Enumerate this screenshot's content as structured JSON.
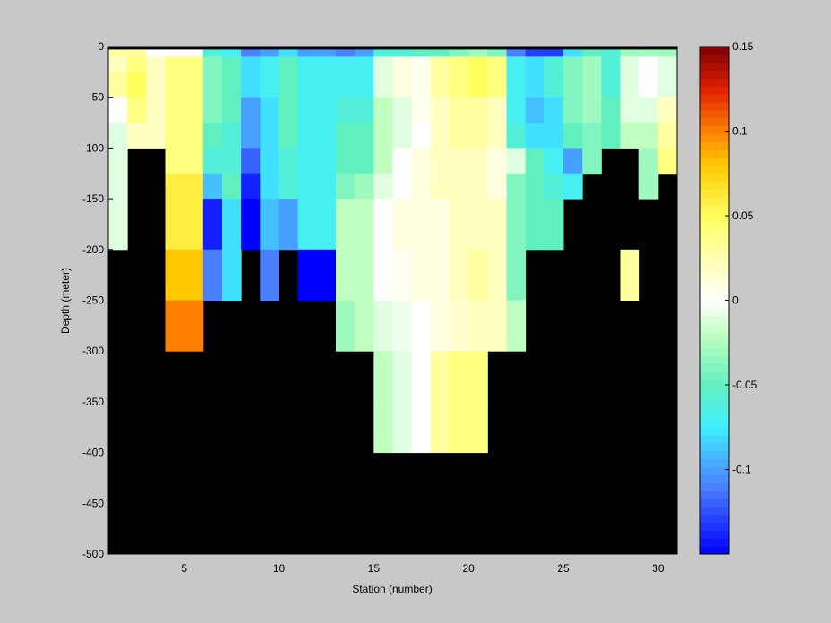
{
  "chart_data": {
    "type": "heatmap",
    "title": "",
    "xlabel": "Station (number)",
    "ylabel": "Depth (meter)",
    "xlim": [
      1,
      31
    ],
    "ylim": [
      -500,
      0
    ],
    "xticks": [
      5,
      10,
      15,
      20,
      25,
      30
    ],
    "yticks": [
      0,
      -50,
      -100,
      -150,
      -200,
      -250,
      -300,
      -350,
      -400,
      -450,
      -500
    ],
    "grid": false,
    "background_color": "#000000",
    "colorbar": {
      "position": "right",
      "range": [
        -0.15,
        0.15
      ],
      "ticks": [
        0.15,
        0.1,
        0.05,
        0,
        -0.05,
        -0.1
      ],
      "tick_labels": [
        "0.15",
        "0.1",
        "0.05",
        "0",
        "-0.05",
        "-0.1"
      ],
      "colormap_stops": [
        {
          "v": -0.15,
          "color": "#0000ff"
        },
        {
          "v": -0.11,
          "color": "#4a7fff"
        },
        {
          "v": -0.075,
          "color": "#40f0ff"
        },
        {
          "v": -0.05,
          "color": "#60f0c0"
        },
        {
          "v": -0.02,
          "color": "#c0ffc0"
        },
        {
          "v": 0,
          "color": "#ffffff"
        },
        {
          "v": 0.02,
          "color": "#ffffc0"
        },
        {
          "v": 0.05,
          "color": "#ffff60"
        },
        {
          "v": 0.08,
          "color": "#ffc800"
        },
        {
          "v": 0.1,
          "color": "#ff8000"
        },
        {
          "v": 0.125,
          "color": "#e02000"
        },
        {
          "v": 0.15,
          "color": "#800000"
        }
      ]
    },
    "surface_depth_range": [
      0,
      -10
    ],
    "stations": [
      1,
      2,
      3,
      4,
      5,
      6,
      7,
      8,
      9,
      10,
      11,
      12,
      13,
      14,
      15,
      16,
      17,
      18,
      19,
      20,
      21,
      22,
      23,
      24,
      25,
      26,
      27,
      28,
      29,
      30
    ],
    "station_bottom_depth": [
      -200,
      -100,
      -100,
      -300,
      -300,
      -250,
      -250,
      -200,
      -250,
      -200,
      -250,
      -250,
      -300,
      -300,
      -400,
      -400,
      -400,
      -400,
      -400,
      -400,
      -300,
      -300,
      -200,
      -200,
      -200,
      -150,
      -100,
      -250,
      -150,
      -125
    ],
    "layer_depths": [
      [
        -10,
        -25
      ],
      [
        -25,
        -50
      ],
      [
        -50,
        -75
      ],
      [
        -75,
        -100
      ],
      [
        -100,
        -125
      ],
      [
        -125,
        -150
      ],
      [
        -150,
        -175
      ],
      [
        -175,
        -200
      ],
      [
        -200,
        -250
      ],
      [
        -250,
        -300
      ],
      [
        -300,
        -350
      ],
      [
        -350,
        -400
      ]
    ],
    "values": [
      [
        0.02,
        0.04,
        0.02,
        0.04,
        0.04,
        -0.04,
        -0.05,
        -0.08,
        -0.07,
        -0.05,
        -0.07,
        -0.07,
        -0.07,
        -0.07,
        -0.01,
        0.01,
        0.005,
        0.03,
        0.04,
        0.05,
        0.04,
        -0.07,
        -0.08,
        -0.06,
        -0.04,
        -0.03,
        -0.06,
        -0.01,
        0.0,
        -0.01
      ],
      [
        0.03,
        0.05,
        0.02,
        0.04,
        0.04,
        -0.04,
        -0.05,
        -0.08,
        -0.07,
        -0.05,
        -0.07,
        -0.07,
        -0.07,
        -0.07,
        -0.01,
        0.01,
        0.005,
        0.03,
        0.04,
        0.05,
        0.04,
        -0.07,
        -0.08,
        -0.06,
        -0.04,
        -0.03,
        -0.06,
        -0.01,
        0.0,
        -0.01
      ],
      [
        0.0,
        0.04,
        0.02,
        0.04,
        0.04,
        -0.04,
        -0.05,
        -0.1,
        -0.08,
        -0.05,
        -0.07,
        -0.07,
        -0.06,
        -0.06,
        -0.02,
        -0.01,
        0.005,
        0.02,
        0.03,
        0.03,
        0.02,
        -0.07,
        -0.09,
        -0.08,
        -0.04,
        -0.03,
        -0.05,
        -0.01,
        -0.01,
        0.02
      ],
      [
        -0.01,
        0.02,
        0.02,
        0.04,
        0.04,
        -0.05,
        -0.06,
        -0.1,
        -0.08,
        -0.05,
        -0.07,
        -0.07,
        -0.05,
        -0.05,
        -0.02,
        -0.01,
        0.0,
        0.02,
        0.03,
        0.03,
        0.02,
        -0.06,
        -0.08,
        -0.08,
        -0.05,
        -0.04,
        -0.05,
        -0.02,
        -0.02,
        0.03
      ],
      [
        -0.01,
        null,
        null,
        0.04,
        0.04,
        -0.06,
        -0.06,
        -0.12,
        -0.08,
        -0.06,
        -0.07,
        -0.07,
        -0.05,
        -0.05,
        -0.02,
        0.0,
        0.01,
        0.02,
        0.02,
        0.02,
        0.01,
        -0.01,
        -0.05,
        -0.07,
        -0.1,
        -0.04,
        -0.01,
        null,
        -0.03,
        0.04
      ],
      [
        -0.01,
        null,
        null,
        0.06,
        0.06,
        -0.09,
        -0.05,
        -0.14,
        -0.08,
        -0.06,
        -0.07,
        -0.07,
        -0.04,
        -0.03,
        -0.01,
        0.0,
        0.01,
        0.02,
        0.02,
        0.02,
        0.01,
        -0.04,
        -0.05,
        -0.06,
        -0.07,
        null,
        null,
        null,
        -0.03,
        null
      ],
      [
        -0.01,
        null,
        null,
        0.06,
        0.06,
        -0.14,
        -0.08,
        -0.15,
        -0.09,
        -0.1,
        -0.07,
        -0.07,
        -0.02,
        -0.02,
        0.0,
        0.01,
        0.01,
        0.01,
        0.02,
        0.02,
        0.02,
        -0.04,
        -0.05,
        -0.05,
        null,
        -0.01,
        null,
        null,
        -0.01,
        null
      ],
      [
        -0.01,
        null,
        null,
        0.06,
        0.06,
        -0.14,
        -0.08,
        -0.15,
        -0.09,
        -0.1,
        -0.07,
        -0.07,
        -0.02,
        -0.02,
        0.0,
        0.01,
        0.01,
        0.01,
        0.02,
        0.02,
        0.02,
        -0.04,
        -0.05,
        -0.05,
        null,
        -0.01,
        null,
        null,
        -0.01,
        null
      ],
      [
        null,
        null,
        null,
        0.08,
        0.08,
        -0.11,
        -0.08,
        null,
        -0.11,
        null,
        -0.15,
        -0.15,
        -0.02,
        -0.02,
        0.0,
        0.005,
        0.01,
        0.01,
        0.02,
        0.03,
        0.02,
        -0.04,
        null,
        null,
        null,
        null,
        null,
        0.03,
        null,
        null
      ],
      [
        null,
        null,
        null,
        0.1,
        0.1,
        null,
        null,
        null,
        null,
        null,
        null,
        null,
        -0.03,
        -0.02,
        -0.01,
        -0.005,
        0.0,
        0.01,
        0.015,
        0.02,
        0.02,
        -0.02,
        null,
        null,
        null,
        null,
        null,
        null,
        null,
        null
      ],
      [
        null,
        null,
        null,
        null,
        null,
        null,
        null,
        null,
        null,
        null,
        null,
        null,
        null,
        null,
        -0.02,
        -0.01,
        0.0,
        0.03,
        0.04,
        0.04,
        null,
        null,
        null,
        null,
        null,
        null,
        null,
        null,
        null,
        null
      ],
      [
        null,
        null,
        null,
        null,
        null,
        null,
        null,
        null,
        null,
        null,
        null,
        null,
        null,
        null,
        -0.02,
        -0.01,
        0.0,
        0.03,
        0.04,
        0.04,
        null,
        null,
        null,
        null,
        null,
        null,
        null,
        null,
        null,
        null
      ]
    ],
    "surface_values": [
      0.03,
      0.03,
      0.0,
      0.0,
      0.0,
      -0.06,
      -0.07,
      -0.11,
      -0.1,
      -0.08,
      -0.1,
      -0.1,
      -0.11,
      -0.1,
      -0.06,
      -0.06,
      -0.05,
      -0.05,
      -0.04,
      -0.03,
      -0.04,
      -0.11,
      -0.13,
      -0.13,
      -0.08,
      -0.05,
      -0.06,
      -0.03,
      -0.03,
      -0.03
    ]
  }
}
